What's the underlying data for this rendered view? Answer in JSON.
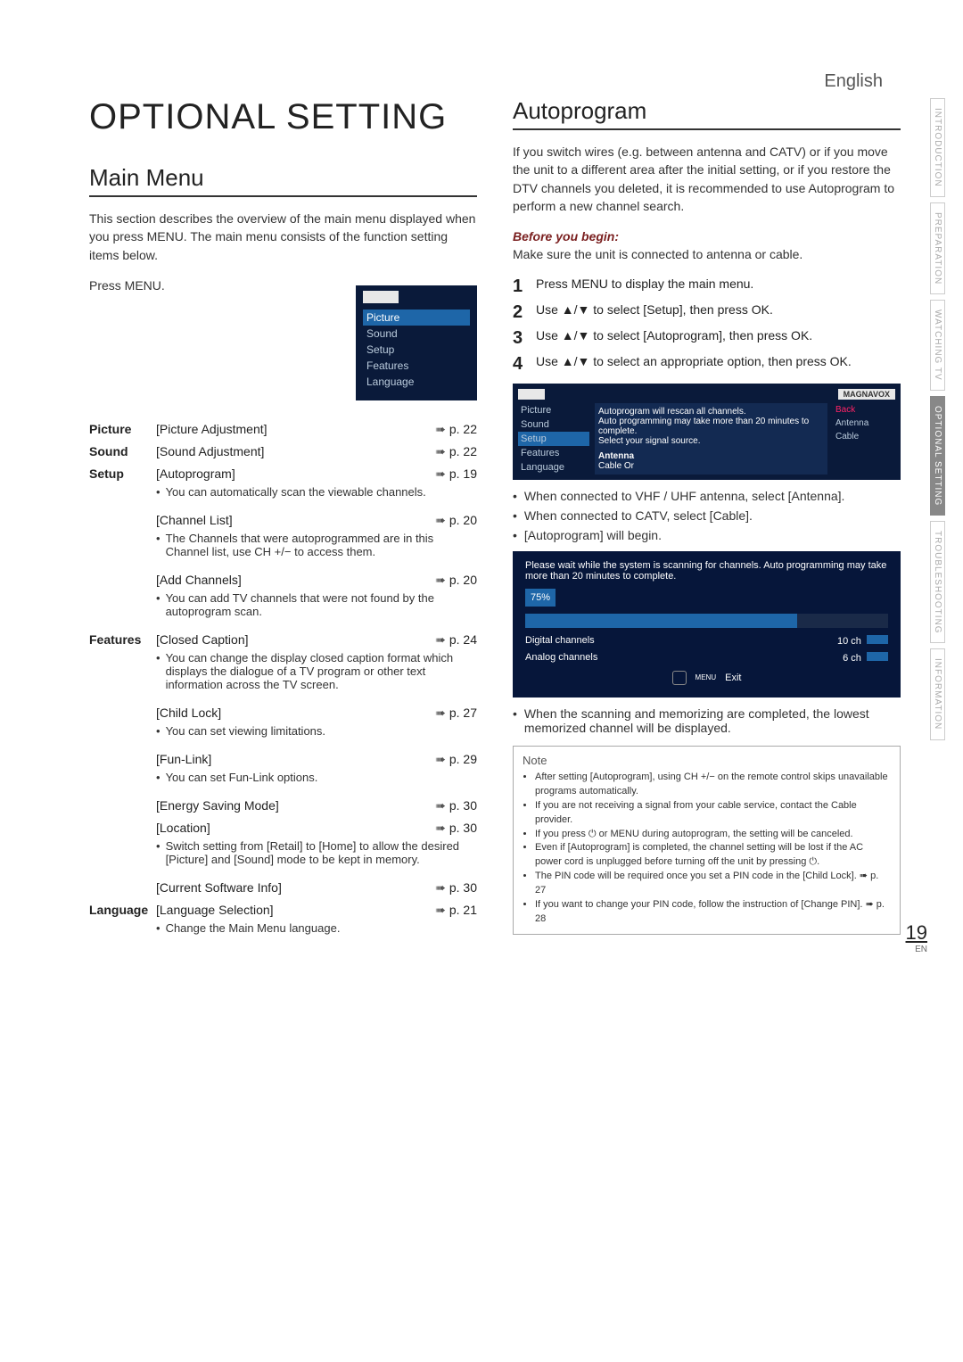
{
  "language_label": "English",
  "title": "OPTIONAL SETTING",
  "main_menu": {
    "heading": "Main Menu",
    "intro": "This section describes the overview of the main menu displayed when you press MENU. The main menu consists of the function setting items below.",
    "press": "Press MENU.",
    "menu_items": [
      "Picture",
      "Sound",
      "Setup",
      "Features",
      "Language"
    ],
    "rows": [
      {
        "section": "Picture",
        "item": "[Picture Adjustment]",
        "page": "p. 22",
        "notes": []
      },
      {
        "section": "Sound",
        "item": "[Sound Adjustment]",
        "page": "p. 22",
        "notes": []
      },
      {
        "section": "Setup",
        "item": "[Autoprogram]",
        "page": "p. 19",
        "notes": [
          "You can automatically scan the viewable channels."
        ]
      },
      {
        "section": "",
        "item": "[Channel List]",
        "page": "p. 20",
        "notes": [
          "The Channels that were autoprogrammed are in this Channel list, use CH +/− to access them."
        ]
      },
      {
        "section": "",
        "item": "[Add Channels]",
        "page": "p. 20",
        "notes": [
          "You can add TV channels that were not found by the autoprogram scan."
        ]
      },
      {
        "section": "Features",
        "item": "[Closed Caption]",
        "page": "p. 24",
        "notes": [
          "You can change the display closed caption format which displays the dialogue of a TV program or other text information across the TV screen."
        ]
      },
      {
        "section": "",
        "item": "[Child Lock]",
        "page": "p. 27",
        "notes": [
          "You can set viewing limitations."
        ]
      },
      {
        "section": "",
        "item": "[Fun-Link]",
        "page": "p. 29",
        "notes": [
          "You can set Fun-Link options."
        ]
      },
      {
        "section": "",
        "item": "[Energy Saving Mode]",
        "page": "p. 30",
        "notes": []
      },
      {
        "section": "",
        "item": "[Location]",
        "page": "p. 30",
        "notes": [
          "Switch setting from [Retail] to [Home] to allow the desired [Picture] and [Sound] mode to be kept in memory."
        ]
      },
      {
        "section": "",
        "item": "[Current Software Info]",
        "page": "p. 30",
        "notes": []
      },
      {
        "section": "Language",
        "item": "[Language Selection]",
        "page": "p. 21",
        "notes": [
          "Change the Main Menu language."
        ]
      }
    ]
  },
  "autoprogram": {
    "heading": "Autoprogram",
    "intro": "If you switch wires (e.g. between antenna and CATV) or if you move the unit to a different area after the initial setting, or if you restore the DTV channels you deleted, it is recommended to use Autoprogram to perform a new channel search.",
    "before_heading": "Before you begin:",
    "before_text": "Make sure the unit is connected to antenna or cable.",
    "steps": [
      "Press MENU to display the main menu.",
      "Use ▲/▼ to select [Setup], then press OK.",
      "Use ▲/▼ to select [Autoprogram], then press OK.",
      "Use ▲/▼ to select an appropriate option, then press OK."
    ],
    "osd_brand": "MAGNAVOX",
    "osd_left": [
      "Picture",
      "Sound",
      "Setup",
      "Features",
      "Language"
    ],
    "osd_mid_lines": [
      "Autoprogram will rescan all channels.",
      "Auto programming may take more than 20 minutes to complete.",
      "Select your signal source.",
      "Antenna",
      "Cable    Or"
    ],
    "osd_right": [
      "Back",
      "Antenna",
      "Cable"
    ],
    "post_osd": [
      "When connected to VHF / UHF antenna, select [Antenna].",
      "When connected to CATV, select [Cable].",
      "[Autoprogram] will begin."
    ],
    "progress": {
      "msg": "Please wait while the system is scanning for channels. Auto programming may take more than 20 minutes to complete.",
      "pct_label": "75%",
      "pct": 75,
      "digital_lbl": "Digital channels",
      "digital_val": "10 ch",
      "analog_lbl": "Analog channels",
      "analog_val": "6 ch",
      "exit": "Exit",
      "menu_lbl": "MENU"
    },
    "after_progress": "When the scanning and memorizing are completed, the lowest memorized channel will be displayed.",
    "note_title": "Note",
    "notes": [
      "After setting [Autoprogram], using CH +/− on the remote control skips unavailable programs automatically.",
      "If you are not receiving a signal from your cable service, contact the Cable provider.",
      "If you press ⏻ or MENU during autoprogram, the setting will be canceled.",
      "Even if [Autoprogram] is completed, the channel setting will be lost if the AC power cord is unplugged before turning off the unit by pressing ⏻.",
      "The PIN code will be required once you set a PIN code in the [Child Lock]. ➠ p. 27",
      "If you want to change your PIN code, follow the instruction of [Change PIN]. ➠ p. 28"
    ]
  },
  "side_tabs": [
    "INTRODUCTION",
    "PREPARATION",
    "WATCHING TV",
    "OPTIONAL SETTING",
    "TROUBLESHOOTING",
    "INFORMATION"
  ],
  "page_number": "19",
  "page_en": "EN"
}
